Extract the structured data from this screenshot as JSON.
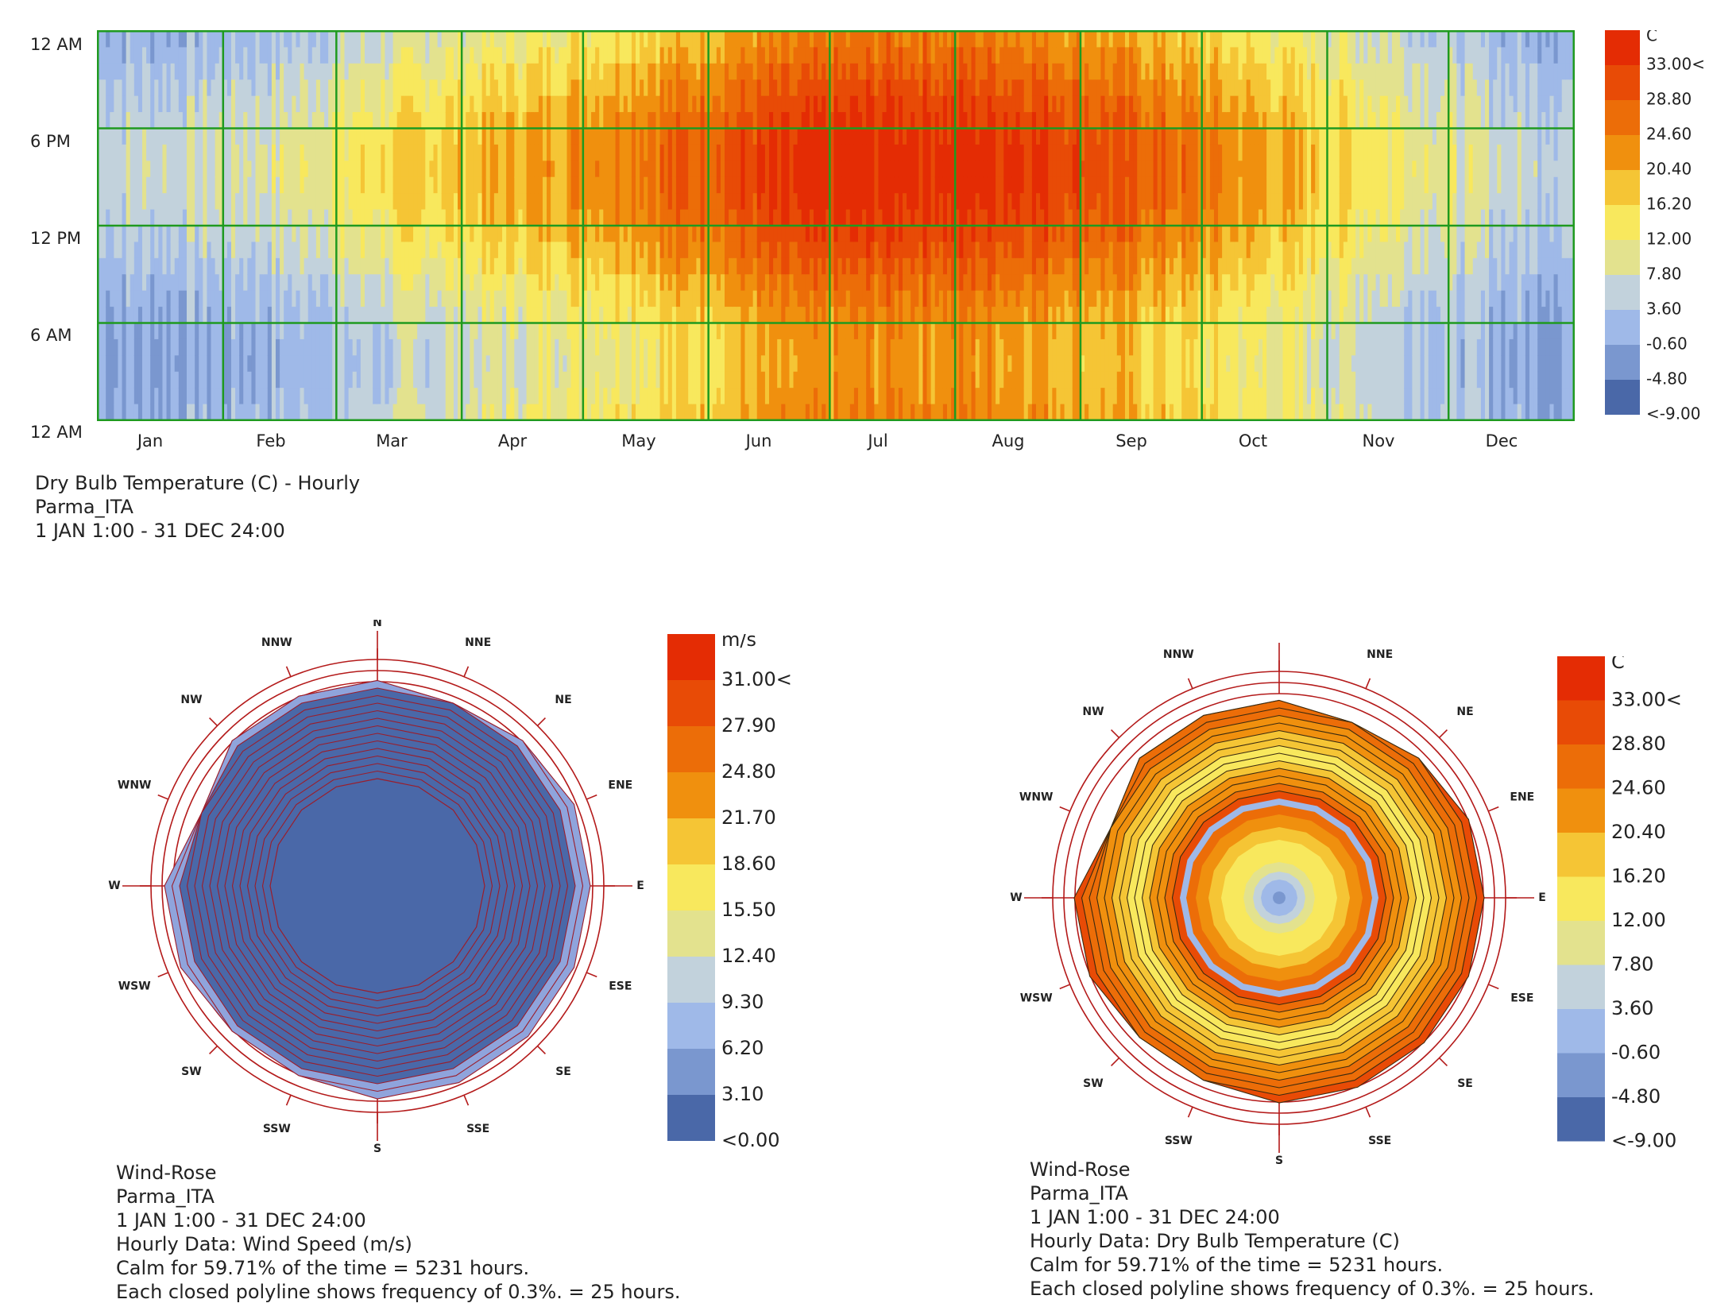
{
  "heatmap": {
    "y_labels": [
      "12 AM",
      "6 PM",
      "12 PM",
      "6 AM",
      "12 AM"
    ],
    "months": [
      "Jan",
      "Feb",
      "Mar",
      "Apr",
      "May",
      "Jun",
      "Jul",
      "Aug",
      "Sep",
      "Oct",
      "Nov",
      "Dec"
    ],
    "caption": [
      "Dry Bulb Temperature (C) - Hourly",
      "Parma_ITA",
      "1 JAN 1:00 - 31 DEC 24:00"
    ],
    "legend": {
      "unit": "C",
      "labels": [
        "33.00<",
        "28.80",
        "24.60",
        "20.40",
        "16.20",
        "12.00",
        "7.80",
        "3.60",
        "-0.60",
        "-4.80",
        "<-9.00"
      ],
      "colors": [
        "#e42c04",
        "#e84b06",
        "#ec6d08",
        "#f0900e",
        "#f5c535",
        "#f8e85d",
        "#e3e28e",
        "#c2d2dc",
        "#9fb9e8",
        "#7a97cf",
        "#4a68a8"
      ]
    }
  },
  "windrose_speed": {
    "directions": [
      "N",
      "NNE",
      "NE",
      "ENE",
      "E",
      "ESE",
      "SE",
      "SSE",
      "S",
      "SSW",
      "SW",
      "WSW",
      "W",
      "WNW",
      "NW",
      "NNW"
    ],
    "legend": {
      "unit": "m/s",
      "labels": [
        "31.00<",
        "27.90",
        "24.80",
        "21.70",
        "18.60",
        "15.50",
        "12.40",
        "9.30",
        "6.20",
        "3.10",
        "<0.00"
      ],
      "colors": [
        "#e42c04",
        "#e84b06",
        "#ec6d08",
        "#f0900e",
        "#f5c535",
        "#f8e85d",
        "#e3e28e",
        "#c2d2dc",
        "#9fb9e8",
        "#7a97cf",
        "#4a68a8"
      ]
    },
    "caption": [
      "Wind-Rose",
      "Parma_ITA",
      "1 JAN 1:00 - 31 DEC 24:00",
      "Hourly Data: Wind Speed (m/s)",
      "Calm for 59.71% of the time = 5231 hours.",
      "Each closed polyline shows frequency of 0.3%. = 25 hours."
    ]
  },
  "windrose_temp": {
    "directions": [
      "N",
      "NNE",
      "NE",
      "ENE",
      "E",
      "ESE",
      "SE",
      "SSE",
      "S",
      "SSW",
      "SW",
      "WSW",
      "W",
      "WNW",
      "NW",
      "NNW"
    ],
    "legend": {
      "unit": "C",
      "labels": [
        "33.00<",
        "28.80",
        "24.60",
        "20.40",
        "16.20",
        "12.00",
        "7.80",
        "3.60",
        "-0.60",
        "-4.80",
        "<-9.00"
      ],
      "colors": [
        "#e42c04",
        "#e84b06",
        "#ec6d08",
        "#f0900e",
        "#f5c535",
        "#f8e85d",
        "#e3e28e",
        "#c2d2dc",
        "#9fb9e8",
        "#7a97cf",
        "#4a68a8"
      ]
    },
    "caption": [
      "Wind-Rose",
      "Parma_ITA",
      "1 JAN 1:00 - 31 DEC 24:00",
      "Hourly Data: Dry Bulb Temperature (C)",
      "Calm for 59.71% of the time = 5231 hours.",
      "Each closed polyline shows frequency of 0.3%. = 25 hours."
    ]
  },
  "chart_data": [
    {
      "type": "heatmap",
      "title": "Dry Bulb Temperature (C) - Hourly",
      "subtitle": "Parma_ITA",
      "x_categories": [
        "Jan",
        "Feb",
        "Mar",
        "Apr",
        "May",
        "Jun",
        "Jul",
        "Aug",
        "Sep",
        "Oct",
        "Nov",
        "Dec"
      ],
      "y_categories": [
        "12 AM",
        "6 PM",
        "12 PM",
        "6 AM",
        "12 AM"
      ],
      "approx_daily_mean_by_month_C": [
        2,
        4,
        9,
        13,
        18,
        23,
        26,
        25,
        20,
        14,
        8,
        2
      ],
      "approx_daily_swing_C": [
        7,
        8,
        10,
        11,
        12,
        12,
        12,
        12,
        11,
        9,
        7,
        6
      ],
      "colorbar": {
        "unit": "C",
        "min": -9.0,
        "max": 33.0,
        "ticks": [
          33.0,
          28.8,
          24.6,
          20.4,
          16.2,
          12.0,
          7.8,
          3.6,
          -0.6,
          -4.8,
          -9.0
        ]
      }
    },
    {
      "type": "windrose",
      "title": "Wind-Rose",
      "variable": "Wind Speed (m/s)",
      "directions": [
        "N",
        "NNE",
        "NE",
        "ENE",
        "E",
        "ESE",
        "SE",
        "SSE",
        "S",
        "SSW",
        "SW",
        "WSW",
        "W",
        "WNW",
        "NW",
        "NNW"
      ],
      "frequency_rings": [
        13,
        12,
        13,
        14,
        14,
        14,
        14,
        14,
        14,
        13,
        13,
        14,
        14,
        11,
        13,
        13
      ],
      "calm_percent": 59.71,
      "calm_hours": 5231,
      "ring_step_percent": 0.3,
      "colorbar": {
        "unit": "m/s",
        "min": 0.0,
        "max": 31.0
      }
    },
    {
      "type": "windrose",
      "title": "Wind-Rose",
      "variable": "Dry Bulb Temperature (C)",
      "directions": [
        "N",
        "NNE",
        "NE",
        "ENE",
        "E",
        "ESE",
        "SE",
        "SSE",
        "S",
        "SSW",
        "SW",
        "WSW",
        "W",
        "WNW",
        "NW",
        "NNW"
      ],
      "frequency_rings": [
        13,
        12,
        13,
        14,
        14,
        14,
        14,
        14,
        14,
        13,
        13,
        14,
        14,
        11,
        13,
        13
      ],
      "calm_percent": 59.71,
      "calm_hours": 5231,
      "ring_step_percent": 0.3,
      "colorbar": {
        "unit": "C",
        "min": -9.0,
        "max": 33.0
      }
    }
  ]
}
